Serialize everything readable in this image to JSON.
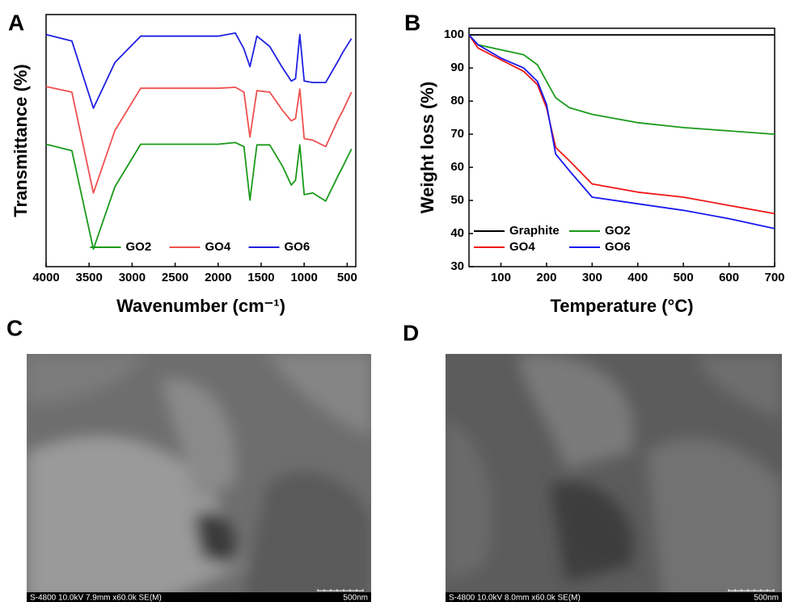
{
  "chart_data": [
    {
      "type": "line",
      "label": "A",
      "x_label": "Wavenumber (cm⁻¹)",
      "y_label": "Transmittance (%)",
      "x": [
        4000,
        3700,
        3450,
        3200,
        2900,
        2500,
        2000,
        1800,
        1700,
        1630,
        1550,
        1400,
        1250,
        1150,
        1100,
        1050,
        1000,
        900,
        750,
        600,
        550,
        450
      ],
      "xlim": [
        4000,
        400
      ],
      "xticks": [
        4000,
        3500,
        3000,
        2500,
        2000,
        1500,
        1000,
        500
      ],
      "ylim": [
        0,
        105
      ],
      "legend": "lower center",
      "series": [
        {
          "name": "GO2",
          "color": "#1a9a1a",
          "values": [
            51,
            48.3,
            7.3,
            33.3,
            51,
            51,
            51,
            51.7,
            50,
            27.7,
            50.7,
            50.7,
            41.7,
            34,
            36,
            50.7,
            30,
            30.7,
            27.3,
            38.3,
            41.7,
            49
          ]
        },
        {
          "name": "GO4",
          "color": "#f05050",
          "values": [
            75,
            72.7,
            30.7,
            56.7,
            74.3,
            74.3,
            74.3,
            74.7,
            72.7,
            54,
            73.3,
            72.7,
            65,
            60.7,
            61.7,
            74,
            53.3,
            52.7,
            50,
            61.7,
            65,
            72.7
          ]
        },
        {
          "name": "GO6",
          "color": "#2020e0",
          "values": [
            96.7,
            94,
            66,
            85,
            96,
            96,
            96,
            97.3,
            90.7,
            83.3,
            96,
            91.7,
            82.7,
            77.3,
            78.3,
            96.7,
            77.3,
            76.7,
            76.7,
            86,
            89.3,
            95
          ]
        }
      ]
    },
    {
      "type": "line",
      "label": "B",
      "x_label": "Temperature (°C)",
      "y_label": "Weight loss (%)",
      "x": [
        30,
        50,
        100,
        150,
        180,
        200,
        220,
        250,
        300,
        400,
        500,
        600,
        700
      ],
      "xlim": [
        30,
        700
      ],
      "xticks": [
        100,
        200,
        300,
        400,
        500,
        600,
        700
      ],
      "ylim": [
        30,
        102
      ],
      "yticks": [
        30,
        40,
        50,
        60,
        70,
        80,
        90,
        100
      ],
      "legend": "lower left",
      "series": [
        {
          "name": "Graphite",
          "color": "#000000",
          "values": [
            100,
            100,
            100,
            100,
            100,
            100,
            100,
            100,
            100,
            100,
            100,
            100,
            100
          ]
        },
        {
          "name": "GO2",
          "color": "#1a9a1a",
          "values": [
            100,
            97,
            95.5,
            94,
            91,
            86,
            81,
            78,
            76,
            73.5,
            72,
            71,
            70
          ]
        },
        {
          "name": "GO4",
          "color": "#f01818",
          "values": [
            100,
            96,
            92.5,
            89,
            85,
            78,
            66,
            62,
            55,
            52.5,
            51,
            48.5,
            46
          ]
        },
        {
          "name": "GO6",
          "color": "#1818f0",
          "values": [
            100,
            97,
            93,
            90,
            86,
            79,
            64,
            59,
            51,
            49,
            47,
            44.5,
            41.5
          ]
        }
      ]
    }
  ],
  "images": [
    {
      "label": "C",
      "caption": "S-4800 10.0kV 7.9mm x60.0k SE(M)",
      "scale": "500nm"
    },
    {
      "label": "D",
      "caption": "S-4800 10.0kV 8.0mm x60.0k SE(M)",
      "scale": "500nm"
    }
  ]
}
